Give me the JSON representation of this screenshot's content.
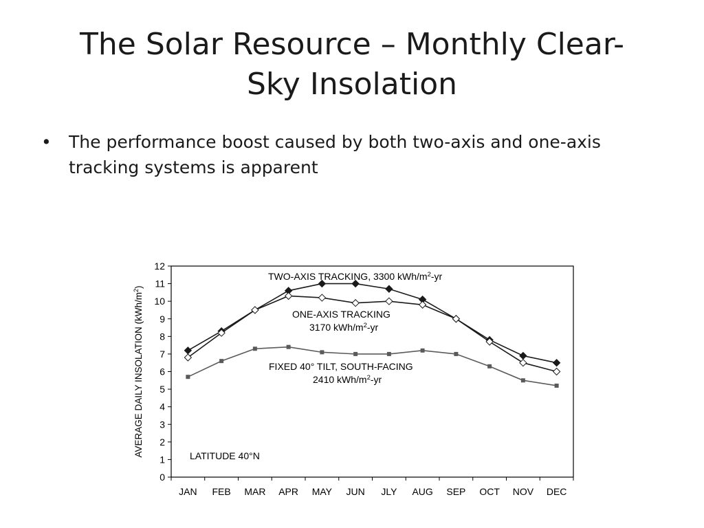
{
  "slide": {
    "title_line1": "The Solar Resource – Monthly Clear-",
    "title_line2": "Sky Insolation",
    "bullets": [
      {
        "symbol": "•",
        "text_line1": "The performance boost caused by both two-axis and one-axis",
        "text_line2": "tracking systems is apparent"
      }
    ]
  },
  "chart_data": {
    "type": "line",
    "title": "",
    "xlabel": "",
    "ylabel": "AVERAGE DAILY INSOLATION (kWh/m²)",
    "categories": [
      "JAN",
      "FEB",
      "MAR",
      "APR",
      "MAY",
      "JUN",
      "JLY",
      "AUG",
      "SEP",
      "OCT",
      "NOV",
      "DEC"
    ],
    "ylim": [
      0,
      12
    ],
    "yticks": [
      0,
      1,
      2,
      3,
      4,
      5,
      6,
      7,
      8,
      9,
      10,
      11,
      12
    ],
    "grid": false,
    "series": [
      {
        "name": "TWO-AXIS TRACKING, 3300 kWh/m²-yr",
        "marker": "filled-diamond",
        "color": "#1a1a1a",
        "values": [
          7.2,
          8.3,
          9.5,
          10.6,
          11.0,
          11.0,
          10.7,
          10.1,
          9.0,
          7.8,
          6.9,
          6.5
        ]
      },
      {
        "name": "ONE-AXIS TRACKING 3170 kWh/m²-yr",
        "marker": "open-diamond",
        "color": "#1a1a1a",
        "values": [
          6.8,
          8.2,
          9.5,
          10.3,
          10.2,
          9.9,
          10.0,
          9.8,
          9.0,
          7.7,
          6.5,
          6.0
        ]
      },
      {
        "name": "FIXED 40° TILT, SOUTH-FACING 2410 kWh/m²-yr",
        "marker": "filled-square",
        "color": "#5a5a5a",
        "values": [
          5.7,
          6.6,
          7.3,
          7.4,
          7.1,
          7.0,
          7.0,
          7.2,
          7.0,
          6.3,
          5.5,
          5.2
        ]
      }
    ],
    "annotations": {
      "two_axis": {
        "pre": "TWO-AXIS TRACKING, 3300 kWh/m",
        "sup": "2",
        "post": "-yr"
      },
      "one_axis_line1": "ONE-AXIS TRACKING",
      "one_axis_line2": {
        "pre": "3170 kWh/m",
        "sup": "2",
        "post": "-yr"
      },
      "fixed_line1": "FIXED 40° TILT, SOUTH-FACING",
      "fixed_line2": {
        "pre": "2410 kWh/m",
        "sup": "2",
        "post": "-yr"
      },
      "latitude": "LATITUDE 40°N"
    }
  }
}
